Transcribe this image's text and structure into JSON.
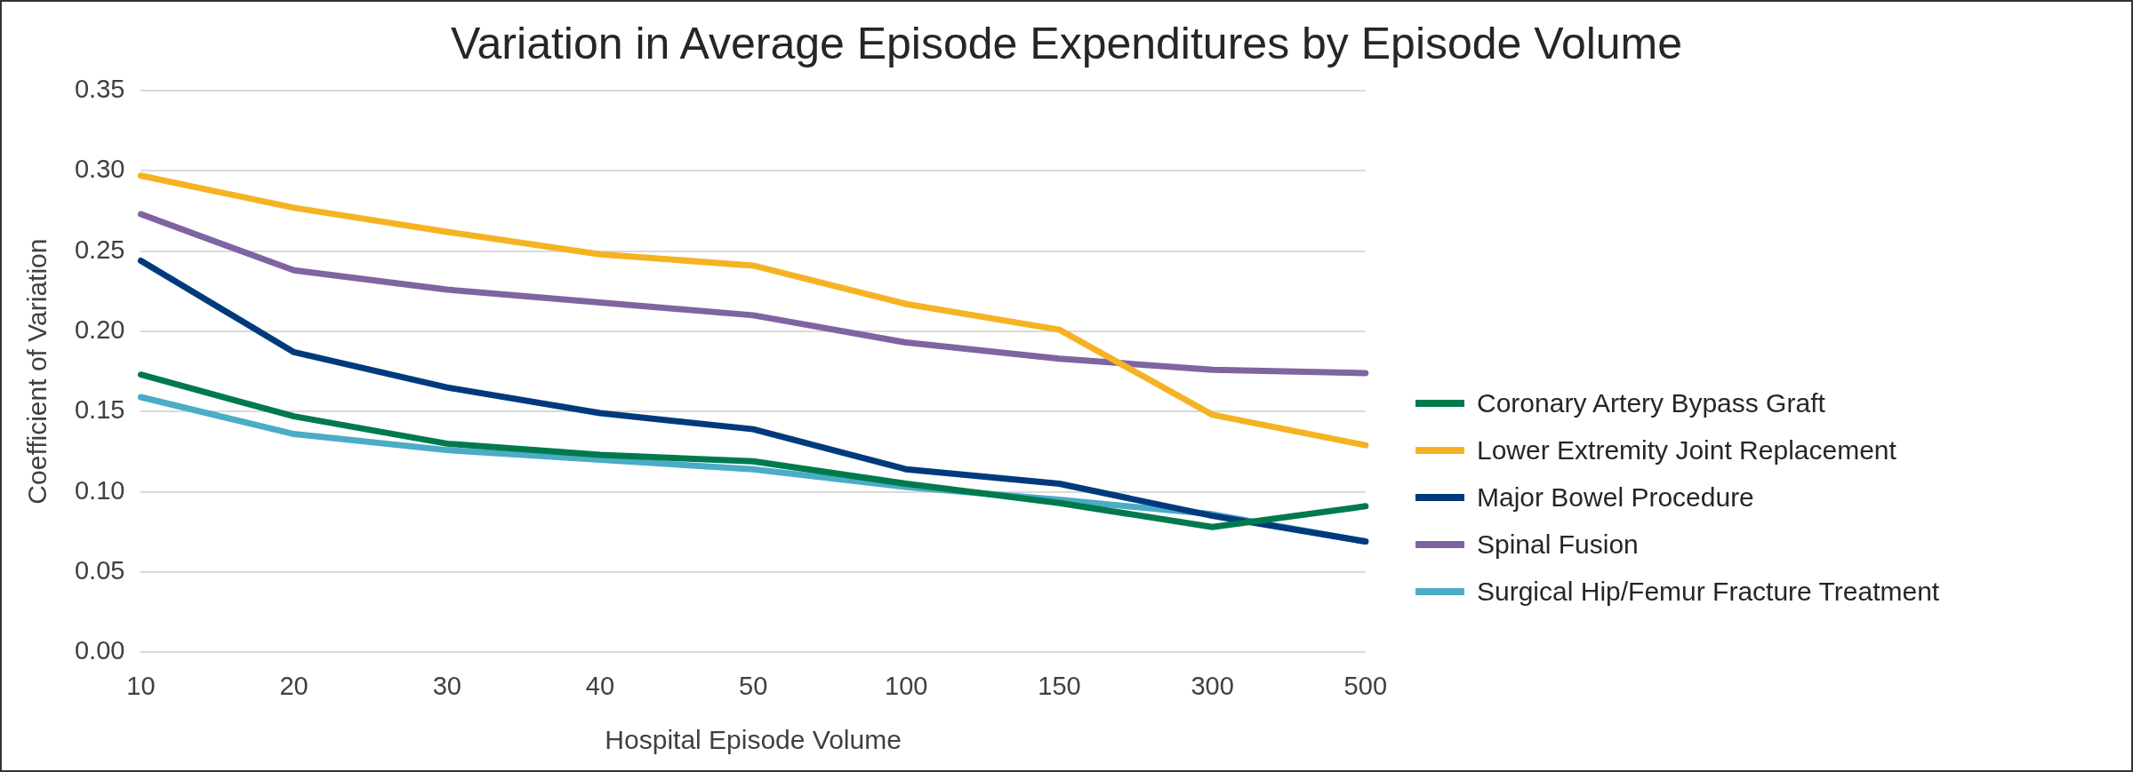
{
  "chart_data": {
    "type": "line",
    "title": "Variation in Average Episode Expenditures by Episode Volume",
    "xlabel": "Hospital Episode Volume",
    "ylabel": "Coefficient of Variation",
    "categories": [
      "10",
      "20",
      "30",
      "40",
      "50",
      "100",
      "150",
      "300",
      "500"
    ],
    "series": [
      {
        "name": "Coronary Artery Bypass Graft",
        "color": "#007a4d",
        "values": [
          0.173,
          0.147,
          0.13,
          0.123,
          0.119,
          0.105,
          0.093,
          0.078,
          0.091
        ]
      },
      {
        "name": "Lower Extremity Joint Replacement",
        "color": "#f5b324",
        "values": [
          0.297,
          0.277,
          0.262,
          0.248,
          0.241,
          0.217,
          0.201,
          0.148,
          0.129
        ]
      },
      {
        "name": "Major Bowel Procedure",
        "color": "#003a7d",
        "values": [
          0.244,
          0.187,
          0.165,
          0.149,
          0.139,
          0.114,
          0.105,
          0.085,
          0.069
        ]
      },
      {
        "name": "Spinal Fusion",
        "color": "#8064a2",
        "values": [
          0.273,
          0.238,
          0.226,
          0.218,
          0.21,
          0.193,
          0.183,
          0.176,
          0.174
        ]
      },
      {
        "name": "Surgical Hip/Femur Fracture Treatment",
        "color": "#4bacc6",
        "values": [
          0.159,
          0.136,
          0.126,
          0.12,
          0.114,
          0.103,
          0.095,
          0.086,
          0.069
        ]
      }
    ],
    "ylim": [
      0,
      0.35
    ],
    "yticks": [
      {
        "value": 0,
        "label": "0.00"
      },
      {
        "value": 0.05,
        "label": "0.05"
      },
      {
        "value": 0.1,
        "label": "0.10"
      },
      {
        "value": 0.15,
        "label": "0.15"
      },
      {
        "value": 0.2,
        "label": "0.20"
      },
      {
        "value": 0.25,
        "label": "0.25"
      },
      {
        "value": 0.3,
        "label": "0.30"
      },
      {
        "value": 0.35,
        "label": "0.35"
      }
    ],
    "grid": "y",
    "legend": "right",
    "marker": "none",
    "line_style": "solid"
  }
}
